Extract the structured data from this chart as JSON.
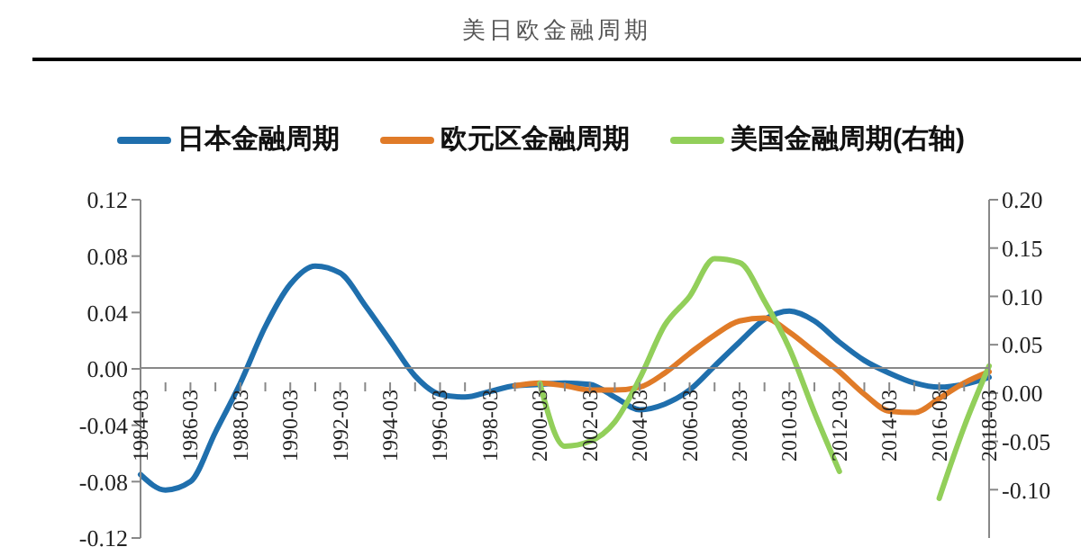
{
  "chart_data": {
    "type": "line",
    "title": "美日欧金融周期",
    "legend": "top",
    "marker": "none",
    "line_style": "solid",
    "grid": false,
    "categories": [
      "1984-03",
      null,
      "1986-03",
      null,
      "1988-03",
      null,
      "1990-03",
      null,
      "1992-03",
      null,
      "1994-03",
      null,
      "1996-03",
      null,
      "1998-03",
      null,
      "2000-03",
      null,
      "2002-03",
      null,
      "2004-03",
      null,
      "2006-03",
      null,
      "2008-03",
      null,
      "2010-03",
      null,
      "2012-03",
      null,
      "2014-03",
      null,
      "2016-03",
      null,
      "2018-03"
    ],
    "series": [
      {
        "name": "日本金融周期",
        "color": "#1f6fad",
        "values": [
          -0.075,
          -0.086,
          -0.08,
          -0.045,
          -0.01,
          0.03,
          0.06,
          0.073,
          0.068,
          0.045,
          0.02,
          -0.005,
          -0.018,
          -0.02,
          -0.016,
          -0.012,
          -0.011,
          -0.01,
          -0.011,
          -0.02,
          -0.029,
          -0.025,
          -0.015,
          0.002,
          0.019,
          0.035,
          0.041,
          0.034,
          0.019,
          0.006,
          -0.003,
          -0.01,
          -0.013,
          -0.011,
          -0.006
        ]
      },
      {
        "name": "欧元区金融周期",
        "color": "#e07b28",
        "values": [
          null,
          null,
          null,
          null,
          null,
          null,
          null,
          null,
          null,
          null,
          null,
          null,
          null,
          null,
          null,
          -0.012,
          -0.01,
          -0.012,
          -0.015,
          -0.015,
          -0.013,
          -0.003,
          0.011,
          0.024,
          0.034,
          0.036,
          0.026,
          0.012,
          -0.002,
          -0.018,
          -0.03,
          -0.031,
          -0.021,
          -0.01,
          -0.002
        ]
      },
      {
        "name": "美国金融周期(右轴)",
        "color": "#92cf5a",
        "axis": "y2",
        "values": [
          null,
          null,
          null,
          null,
          null,
          null,
          null,
          null,
          null,
          null,
          null,
          null,
          null,
          null,
          null,
          null,
          0.01,
          -0.055,
          -0.05,
          -0.03,
          0.015,
          0.07,
          0.1,
          0.139,
          0.135,
          0.095,
          0.046,
          -0.02,
          -0.081,
          null,
          null,
          null,
          -0.109,
          -0.035,
          0.028
        ]
      }
    ],
    "ylim": [
      -0.12,
      0.12
    ],
    "yticks": [
      {
        "value": -0.12,
        "label": "-0.12"
      },
      {
        "value": -0.08,
        "label": "-0.08"
      },
      {
        "value": -0.04,
        "label": "-0.04"
      },
      {
        "value": 0,
        "label": "0.00"
      },
      {
        "value": 0.04,
        "label": "0.04"
      },
      {
        "value": 0.08,
        "label": "0.08"
      },
      {
        "value": 0.12,
        "label": "0.12"
      }
    ],
    "y2lim": [
      -0.15,
      0.2
    ],
    "y2ticks": [
      {
        "value": -0.1,
        "label": "-0.10"
      },
      {
        "value": -0.05,
        "label": "-0.05"
      },
      {
        "value": 0,
        "label": "0.00"
      },
      {
        "value": 0.05,
        "label": "0.05"
      },
      {
        "value": 0.1,
        "label": "0.10"
      },
      {
        "value": 0.15,
        "label": "0.15"
      },
      {
        "value": 0.2,
        "label": "0.20"
      }
    ]
  }
}
